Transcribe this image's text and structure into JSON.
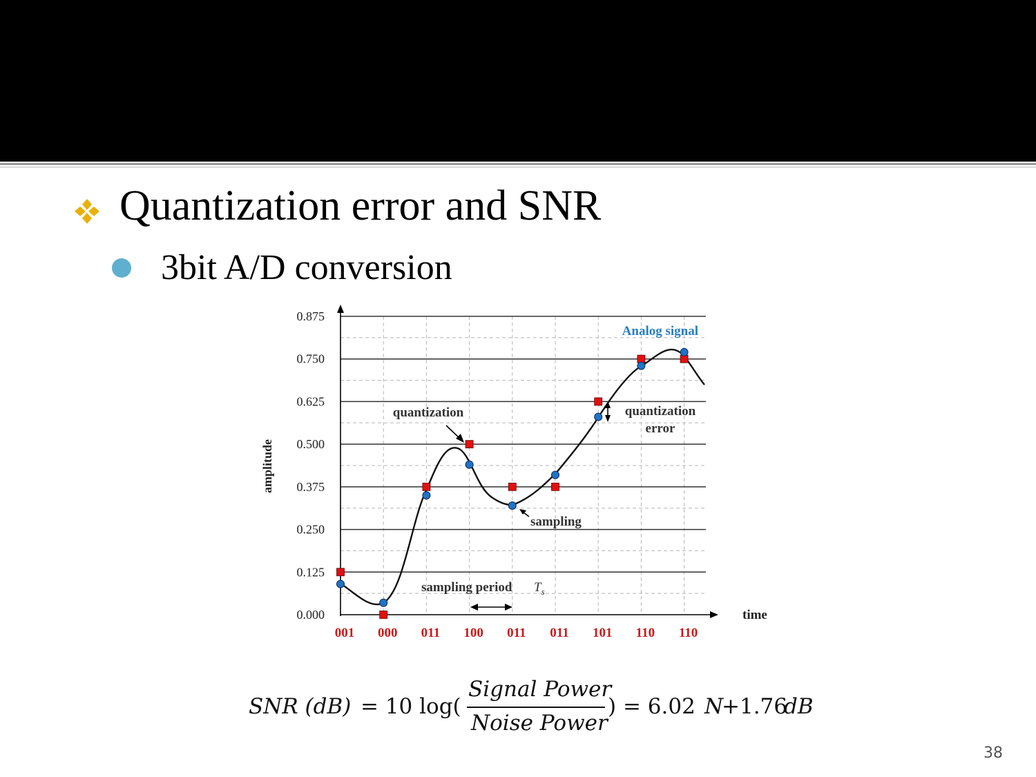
{
  "slide": {
    "heading": "Quantization error and SNR",
    "subheading": "3bit A/D conversion",
    "page_number": "38"
  },
  "colors": {
    "bullet1": "#e8b10b",
    "bullet2": "#5fb0cf",
    "sample_point": "#2173c4",
    "quantized_point": "#e01010",
    "code_label": "#d01818",
    "legend_text": "#2a7ec4"
  },
  "icons": {
    "bullet1": "four-diamond-bullet-icon",
    "bullet2": "circle-bullet-icon"
  },
  "chart_data": {
    "type": "line",
    "title": "",
    "xlabel": "time",
    "ylabel": "amplitude",
    "ylim": [
      0,
      0.875
    ],
    "yticks": [
      "0.000",
      "0.125",
      "0.250",
      "0.375",
      "0.500",
      "0.625",
      "0.750",
      "0.875"
    ],
    "grid": true,
    "legend": "Analog signal",
    "legend_position": "top-right",
    "codes": [
      "001",
      "000",
      "011",
      "100",
      "011",
      "011",
      "101",
      "110",
      "110"
    ],
    "series": [
      {
        "name": "sampling",
        "x": [
          0,
          1,
          2,
          3,
          4,
          5,
          6,
          7,
          8
        ],
        "values": [
          0.09,
          0.035,
          0.35,
          0.44,
          0.32,
          0.41,
          0.58,
          0.73,
          0.77
        ]
      },
      {
        "name": "quantization",
        "x": [
          0,
          1,
          2,
          3,
          4,
          5,
          6,
          7,
          8
        ],
        "values": [
          0.125,
          0.0,
          0.375,
          0.5,
          0.375,
          0.375,
          0.625,
          0.75,
          0.75
        ]
      }
    ],
    "annotations": {
      "quantization": "quantization",
      "quantization_error_1": "quantization",
      "quantization_error_2": "error",
      "sampling": "sampling",
      "sampling_period": "sampling period",
      "ts": "T",
      "ts_sub": "s"
    }
  },
  "formula": {
    "lhs": "SNR (dB)",
    "eq": "= 10 log(",
    "numerator": "Signal Power",
    "denominator": "Noise Power",
    "rhs1": ") = 6.02",
    "rhs_var": "N",
    "rhs2": "+1.76",
    "rhs_unit": "dB"
  }
}
